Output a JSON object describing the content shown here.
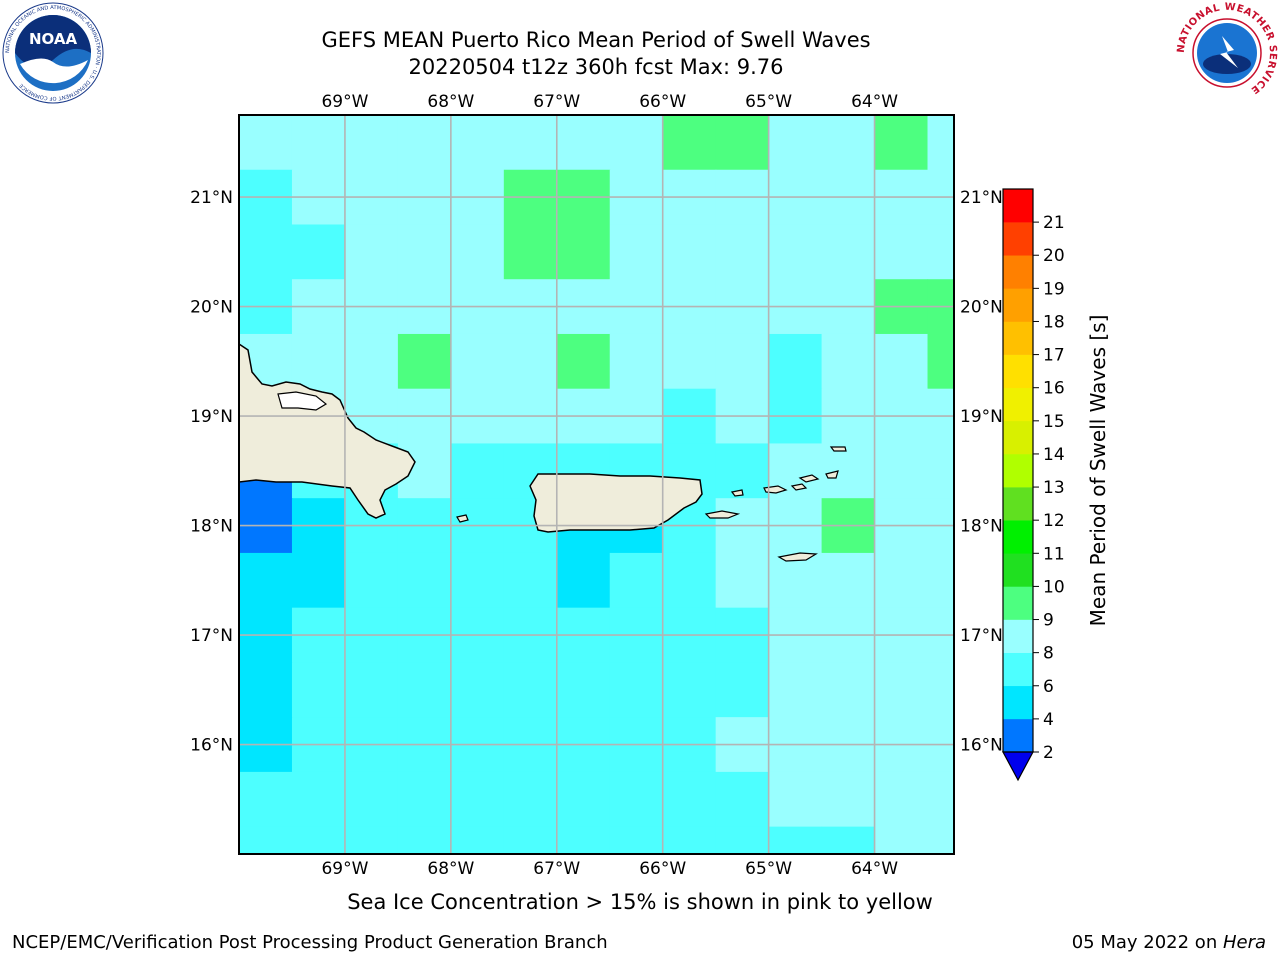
{
  "header": {
    "title_line1": "GEFS MEAN Puerto Rico Mean Period of Swell Waves",
    "title_line2": "20220504 t12z 360h fcst   Max: 9.76"
  },
  "logos": {
    "noaa_text": "NOAA",
    "noaa_ring_text": "NATIONAL OCEANIC AND ATMOSPHERIC ADMINISTRATION · U.S. DEPARTMENT OF COMMERCE",
    "nws_ring_text": "NATIONAL WEATHER SERVICE"
  },
  "footer": {
    "caption": "Sea Ice Concentration > 15% is shown in pink to yellow",
    "credit": "NCEP/EMC/Verification Post Processing Product Generation Branch",
    "date": "05 May 2022 on ",
    "machine": "Hera"
  },
  "chart_data": {
    "type": "heatmap",
    "title": "GEFS MEAN Puerto Rico Mean Period of Swell Waves",
    "subtitle": "20220504 t12z 360h fcst   Max: 9.76",
    "lon_range": [
      -70.0,
      -63.25
    ],
    "lat_range": [
      15.0,
      21.75
    ],
    "x_ticks": [
      -69,
      -68,
      -67,
      -66,
      -65,
      -64
    ],
    "x_tick_labels": [
      "69°W",
      "68°W",
      "67°W",
      "66°W",
      "65°W",
      "64°W"
    ],
    "y_ticks": [
      16,
      17,
      18,
      19,
      20,
      21
    ],
    "y_tick_labels": [
      "16°N",
      "17°N",
      "18°N",
      "19°N",
      "20°N",
      "21°N"
    ],
    "grid": true,
    "colorbar": {
      "label": "Mean Period of Swell Waves [s]",
      "levels": [
        2,
        4,
        6,
        8,
        9,
        10,
        11,
        12,
        13,
        14,
        15,
        16,
        17,
        18,
        19,
        20,
        21
      ],
      "tick_labels": [
        "2",
        "4",
        "6",
        "8",
        "9",
        "10",
        "11",
        "12",
        "13",
        "14",
        "15",
        "16",
        "17",
        "18",
        "19",
        "20",
        "21"
      ],
      "colors": [
        "#0077ff",
        "#00e6ff",
        "#4dffff",
        "#99ffff",
        "#4dff80",
        "#20e020",
        "#00f000",
        "#60e020",
        "#b0ff00",
        "#d8f000",
        "#f0f000",
        "#ffe000",
        "#ffc000",
        "#ffa000",
        "#ff8000",
        "#ff4000",
        "#ff0000"
      ],
      "extend_min_color": "#0000ee"
    },
    "values_grid": {
      "lons": [
        -70.0,
        -69.5,
        -69.0,
        -68.5,
        -68.0,
        -67.5,
        -67.0,
        -66.5,
        -66.0,
        -65.5,
        -65.0,
        -64.5,
        -64.0,
        -63.5
      ],
      "lats": [
        21.5,
        21.0,
        20.5,
        20.0,
        19.5,
        19.0,
        18.5,
        18.0,
        17.5,
        17.0,
        16.5,
        16.0,
        15.5,
        15.0
      ],
      "rows": [
        [
          8.2,
          8.5,
          8.4,
          8.5,
          8.3,
          8.5,
          8.6,
          8.7,
          9.2,
          9.1,
          8.6,
          8.5,
          9.1,
          8.4
        ],
        [
          7.8,
          8.3,
          8.4,
          8.5,
          8.6,
          9.1,
          9.3,
          8.7,
          8.5,
          8.6,
          8.5,
          8.6,
          8.5,
          8.5
        ],
        [
          7.6,
          7.8,
          8.2,
          8.4,
          8.4,
          9.1,
          9.2,
          8.9,
          8.5,
          8.5,
          8.5,
          8.5,
          8.6,
          8.5
        ],
        [
          7.8,
          8.0,
          8.1,
          8.3,
          8.4,
          8.6,
          8.9,
          8.7,
          8.4,
          8.5,
          8.4,
          8.6,
          9.1,
          9.3
        ],
        [
          8.0,
          8.0,
          8.3,
          9.1,
          8.4,
          8.3,
          9.1,
          8.4,
          8.3,
          8.2,
          7.9,
          8.3,
          8.9,
          9.3
        ],
        [
          8.0,
          8.0,
          8.2,
          8.3,
          8.2,
          8.0,
          8.1,
          8.0,
          7.9,
          8.1,
          7.8,
          8.0,
          8.4,
          8.6
        ],
        [
          3.6,
          6.9,
          7.6,
          8.2,
          7.9,
          7.6,
          7.4,
          7.3,
          7.4,
          7.6,
          8.0,
          8.2,
          8.0,
          8.6
        ],
        [
          3.2,
          5.0,
          6.1,
          7.1,
          7.4,
          7.1,
          5.2,
          5.1,
          7.3,
          8.2,
          8.5,
          9.0,
          8.3,
          8.4
        ],
        [
          4.2,
          5.6,
          6.4,
          6.7,
          6.8,
          6.4,
          5.0,
          6.6,
          7.2,
          8.1,
          8.3,
          8.5,
          8.4,
          8.1
        ],
        [
          4.9,
          6.4,
          7.2,
          7.2,
          7.1,
          6.9,
          6.5,
          6.6,
          7.3,
          7.9,
          8.2,
          8.5,
          8.3,
          8.2
        ],
        [
          5.3,
          6.2,
          6.6,
          6.8,
          7.0,
          6.8,
          6.8,
          7.2,
          7.5,
          7.8,
          8.0,
          8.3,
          8.1,
          8.3
        ],
        [
          5.8,
          6.2,
          6.6,
          6.9,
          6.9,
          7.0,
          7.2,
          7.4,
          7.6,
          8.2,
          8.3,
          8.2,
          8.0,
          8.2
        ],
        [
          6.1,
          6.3,
          6.5,
          6.7,
          6.6,
          6.9,
          7.2,
          7.4,
          7.7,
          7.9,
          8.0,
          8.1,
          8.0,
          8.2
        ],
        [
          6.2,
          6.6,
          6.8,
          6.7,
          6.9,
          6.5,
          7.1,
          7.2,
          7.6,
          7.8,
          7.9,
          7.9,
          8.0,
          8.1
        ]
      ]
    },
    "land": "beige",
    "coastline": "black"
  }
}
